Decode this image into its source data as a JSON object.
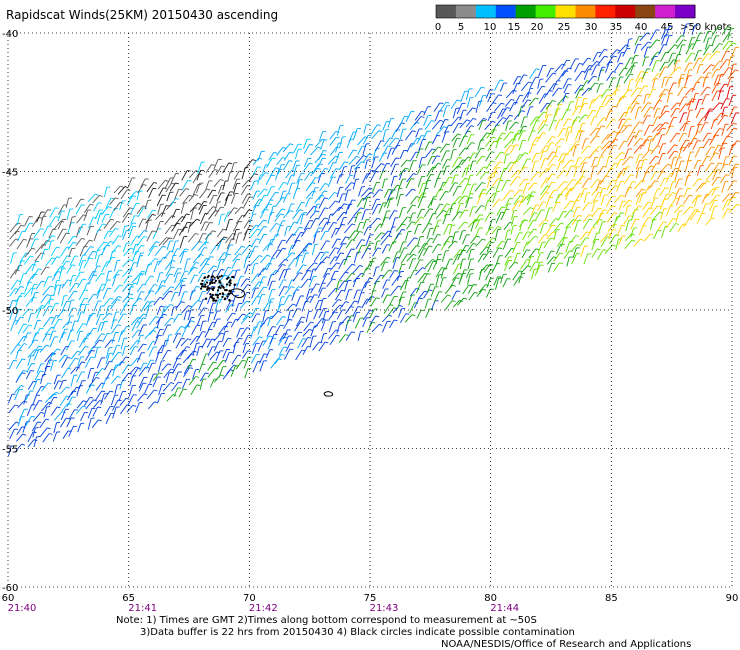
{
  "title": "Rapidscat Winds(25KM) 20150430 ascending",
  "color_scale": {
    "labels": [
      "0",
      "5",
      "10",
      "15",
      "20",
      "25",
      "30",
      "35",
      "40",
      "45",
      ">50 knots"
    ],
    "colors": [
      "#585858",
      "#8c8c8c",
      "#00bfff",
      "#0050ff",
      "#00a000",
      "#44ee00",
      "#ffe000",
      "#ff8c00",
      "#ff2000",
      "#cc0000",
      "#8b4513",
      "#d020d0",
      "#7a00c8"
    ]
  },
  "map": {
    "lon_labels": [
      "60",
      "65",
      "70",
      "75",
      "80",
      "85",
      "90"
    ],
    "lat_labels": [
      "-40",
      "-45",
      "-50",
      "-55",
      "-60"
    ],
    "time_labels": [
      "21:40",
      "21:41",
      "21:42",
      "21:43",
      "21:44"
    ]
  },
  "notes": {
    "line1": "Note: 1) Times are GMT 2)Times along bottom correspond to measurement at ~50S",
    "line2": "3)Data buffer is 22 hrs from 20150430 4) Black circles indicate possible contamination",
    "line3": "NOAA/NESDIS/Office of Research and Applications"
  }
}
